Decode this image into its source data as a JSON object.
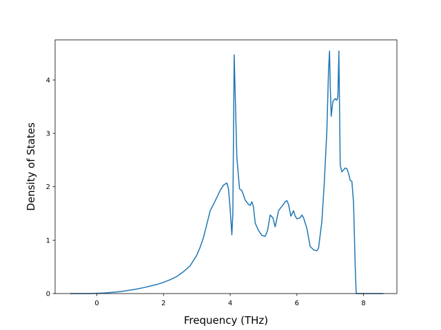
{
  "chart_data": {
    "type": "line",
    "title": "",
    "xlabel": "Frequency (THz)",
    "ylabel": "Density of States",
    "xlim": [
      -1.25,
      9.0
    ],
    "ylim": [
      0,
      4.75
    ],
    "xticks": [
      0,
      2,
      4,
      6,
      8
    ],
    "yticks": [
      0,
      1,
      2,
      3,
      4
    ],
    "grid": false,
    "legend": "none",
    "series": [
      {
        "color": "#1f77b4",
        "x": [
          -0.8,
          -0.2,
          0.0,
          0.2,
          0.4,
          0.6,
          0.8,
          1.0,
          1.2,
          1.4,
          1.6,
          1.8,
          2.0,
          2.2,
          2.4,
          2.6,
          2.8,
          3.0,
          3.1,
          3.2,
          3.3,
          3.4,
          3.5,
          3.6,
          3.7,
          3.8,
          3.85,
          3.9,
          3.95,
          4.0,
          4.05,
          4.08,
          4.12,
          4.2,
          4.28,
          4.35,
          4.45,
          4.55,
          4.6,
          4.65,
          4.7,
          4.75,
          4.85,
          4.95,
          5.05,
          5.12,
          5.2,
          5.28,
          5.35,
          5.45,
          5.52,
          5.6,
          5.65,
          5.7,
          5.75,
          5.82,
          5.9,
          5.95,
          6.0,
          6.1,
          6.15,
          6.2,
          6.3,
          6.4,
          6.5,
          6.6,
          6.65,
          6.75,
          6.82,
          6.9,
          6.95,
          6.98,
          7.0,
          7.03,
          7.08,
          7.15,
          7.2,
          7.23,
          7.26,
          7.3,
          7.35,
          7.45,
          7.5,
          7.55,
          7.6,
          7.65,
          7.7,
          7.75,
          7.78,
          7.8,
          8.0,
          8.6
        ],
        "y": [
          0.0,
          0.0,
          0.005,
          0.01,
          0.02,
          0.03,
          0.045,
          0.065,
          0.085,
          0.11,
          0.14,
          0.17,
          0.21,
          0.26,
          0.32,
          0.41,
          0.52,
          0.72,
          0.87,
          1.05,
          1.3,
          1.55,
          1.67,
          1.8,
          1.93,
          2.03,
          2.05,
          2.07,
          1.96,
          1.58,
          1.1,
          1.5,
          4.47,
          2.55,
          1.96,
          1.93,
          1.75,
          1.67,
          1.65,
          1.72,
          1.62,
          1.32,
          1.18,
          1.09,
          1.07,
          1.18,
          1.47,
          1.42,
          1.25,
          1.55,
          1.61,
          1.67,
          1.72,
          1.74,
          1.67,
          1.45,
          1.55,
          1.45,
          1.4,
          1.42,
          1.47,
          1.42,
          1.22,
          0.88,
          0.82,
          0.8,
          0.85,
          1.35,
          2.05,
          3.05,
          4.2,
          4.54,
          3.9,
          3.32,
          3.6,
          3.65,
          3.62,
          3.68,
          4.54,
          2.4,
          2.28,
          2.35,
          2.34,
          2.25,
          2.12,
          2.1,
          1.7,
          0.5,
          0.0,
          0.0,
          0.0,
          0.0
        ]
      }
    ]
  }
}
